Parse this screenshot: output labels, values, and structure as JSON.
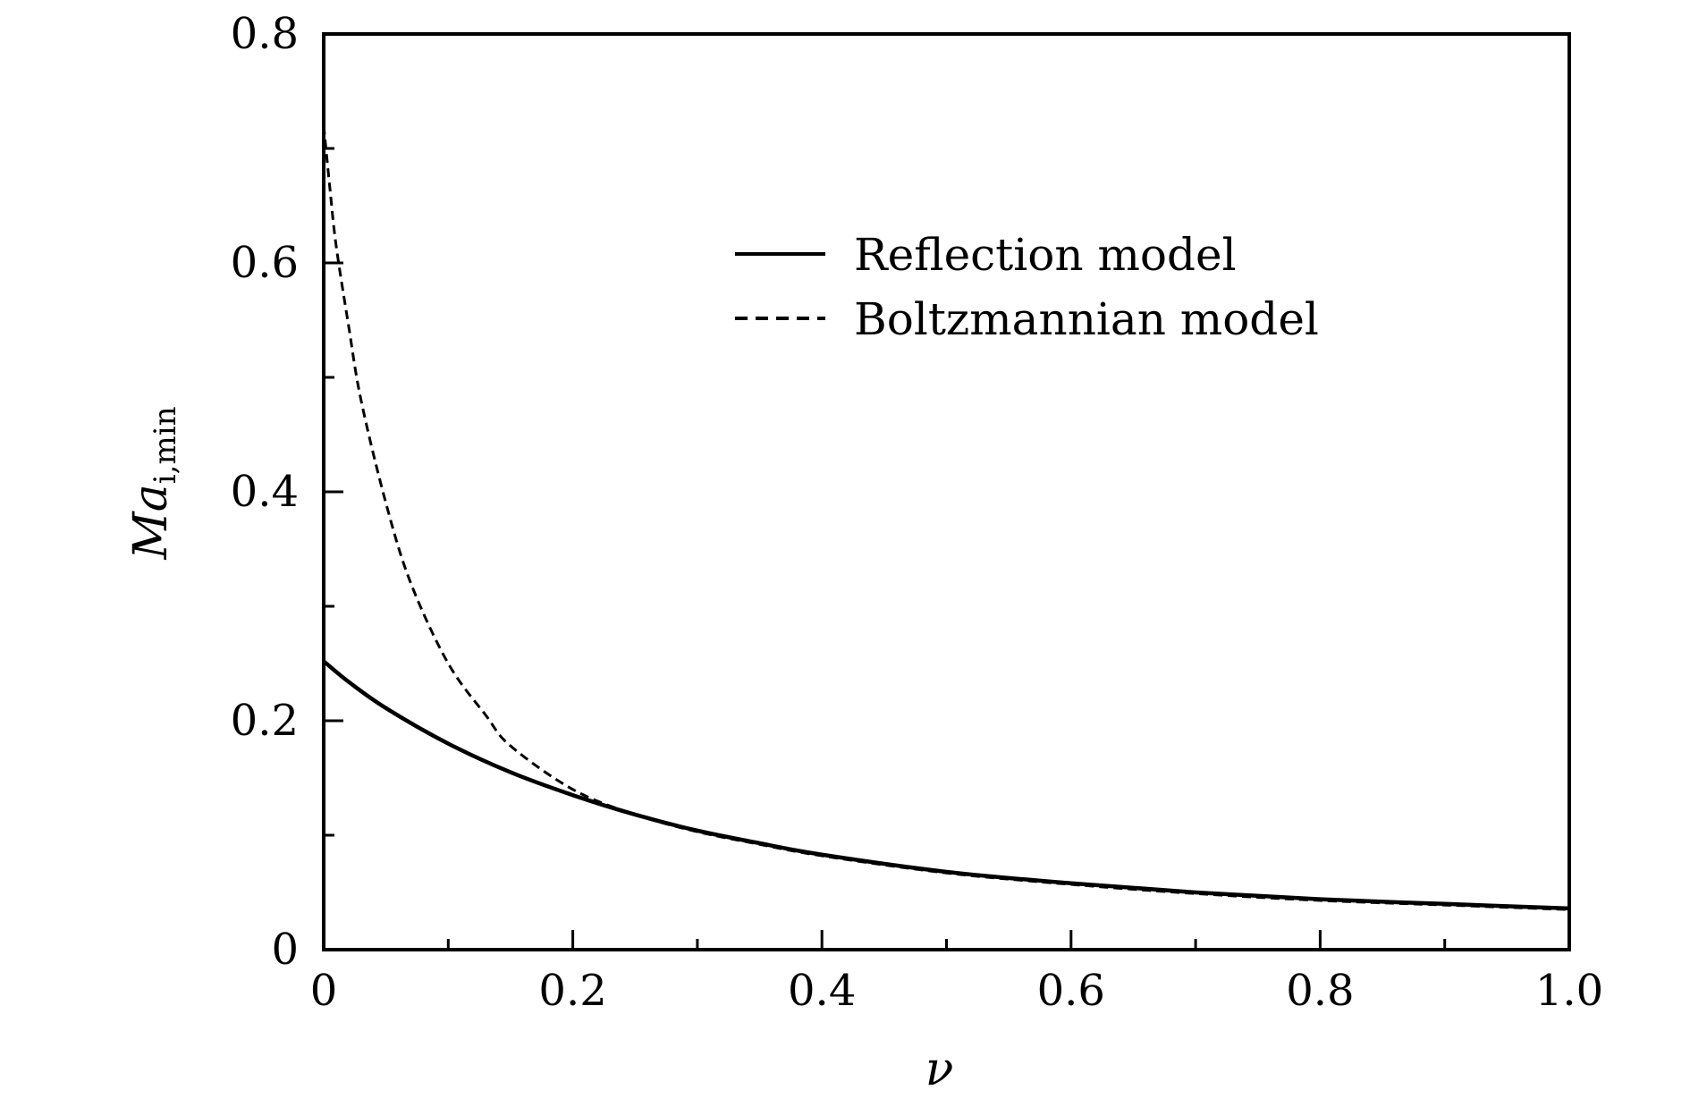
{
  "chart_data": {
    "type": "line",
    "title": "",
    "xlabel": "ν",
    "ylabel": {
      "main": "Ma",
      "sub": "i,min"
    },
    "xlim": [
      0,
      1.0
    ],
    "ylim": [
      0,
      0.8
    ],
    "x_ticks": [
      {
        "value": 0,
        "label": "0"
      },
      {
        "value": 0.2,
        "label": "0.2"
      },
      {
        "value": 0.4,
        "label": "0.4"
      },
      {
        "value": 0.6,
        "label": "0.6"
      },
      {
        "value": 0.8,
        "label": "0.8"
      },
      {
        "value": 1.0,
        "label": "1.0"
      }
    ],
    "y_ticks": [
      {
        "value": 0,
        "label": "0"
      },
      {
        "value": 0.2,
        "label": "0.2"
      },
      {
        "value": 0.4,
        "label": "0.4"
      },
      {
        "value": 0.6,
        "label": "0.6"
      },
      {
        "value": 0.8,
        "label": "0.8"
      }
    ],
    "grid": false,
    "legend_position": "upper-right",
    "series": [
      {
        "name": "Reflection model",
        "style": "solid",
        "color": "#000000",
        "x": [
          0,
          0.02,
          0.05,
          0.1,
          0.15,
          0.2,
          0.25,
          0.3,
          0.35,
          0.4,
          0.5,
          0.6,
          0.7,
          0.8,
          0.9,
          1.0
        ],
        "y": [
          0.252,
          0.234,
          0.211,
          0.18,
          0.155,
          0.135,
          0.118,
          0.104,
          0.093,
          0.083,
          0.068,
          0.058,
          0.05,
          0.044,
          0.04,
          0.036
        ]
      },
      {
        "name": "Boltzmannian model",
        "style": "dashed",
        "color": "#000000",
        "x": [
          0,
          0.005,
          0.01,
          0.02,
          0.03,
          0.05,
          0.07,
          0.1,
          0.13,
          0.15,
          0.2,
          0.25,
          0.3,
          0.35,
          0.4,
          0.5,
          0.6,
          0.7,
          0.8,
          0.9,
          1.0
        ],
        "y": [
          0.72,
          0.665,
          0.615,
          0.545,
          0.48,
          0.39,
          0.32,
          0.25,
          0.205,
          0.178,
          0.14,
          0.118,
          0.103,
          0.092,
          0.082,
          0.067,
          0.057,
          0.049,
          0.043,
          0.039,
          0.035
        ]
      }
    ]
  }
}
